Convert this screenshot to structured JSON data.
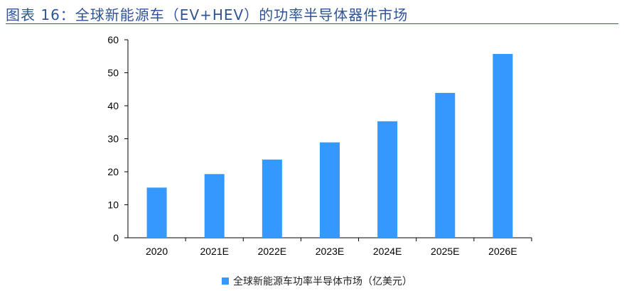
{
  "figure": {
    "title": "图表 16：全球新能源车（EV+HEV）的功率半导体器件市场"
  },
  "colors": {
    "bar": "#3399ff",
    "title": "#2f5496",
    "axis": "#000000"
  },
  "chart_data": {
    "type": "bar",
    "categories": [
      "2020",
      "2021E",
      "2022E",
      "2023E",
      "2024E",
      "2025E",
      "2026E"
    ],
    "series": [
      {
        "name": "全球新能源车功率半导体市场（亿美元）",
        "values": [
          15.2,
          19.3,
          23.7,
          28.9,
          35.3,
          43.9,
          55.7
        ]
      }
    ],
    "title": "",
    "xlabel": "",
    "ylabel": "",
    "ylim": [
      0,
      60
    ],
    "yticks": [
      0,
      10,
      20,
      30,
      40,
      50,
      60
    ],
    "grid": false,
    "legend_position": "bottom"
  }
}
